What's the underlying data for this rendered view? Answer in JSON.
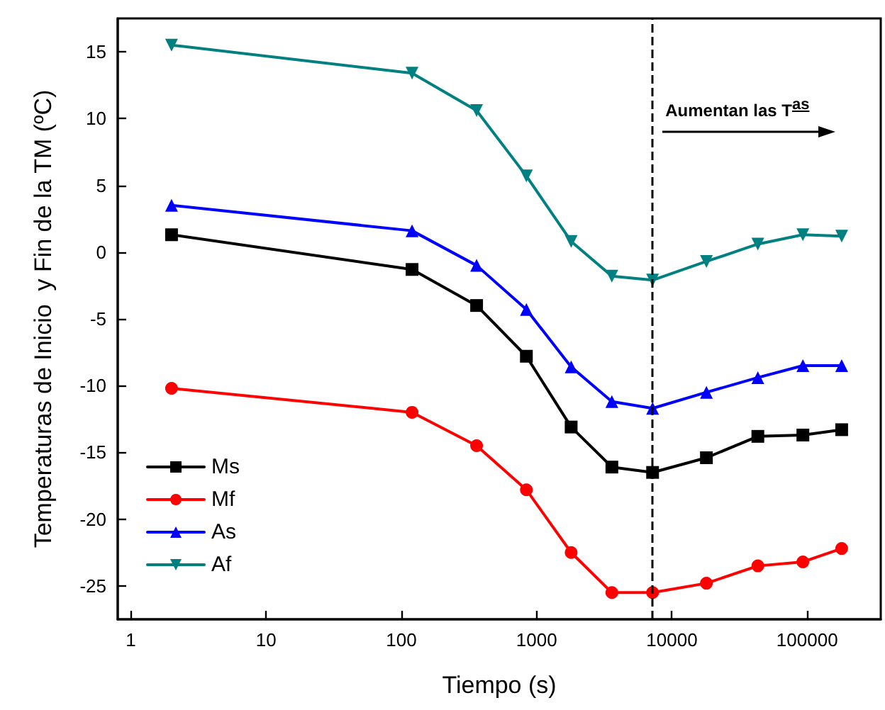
{
  "chart_data": {
    "type": "line",
    "xlabel": "Tiempo (s)",
    "ylabel": "Temperaturas de Inicio  y Fin de la TM (ºC)",
    "x": [
      2,
      120,
      360,
      840,
      1800,
      3600,
      7200,
      18000,
      43200,
      93000,
      180000
    ],
    "series": [
      {
        "name": "Ms",
        "color": "#000000",
        "marker": "square",
        "values": [
          1.3,
          -1.3,
          -4.0,
          -7.8,
          -13.1,
          -16.1,
          -16.5,
          -15.4,
          -13.8,
          -13.7,
          -13.3
        ]
      },
      {
        "name": "Mf",
        "color": "#ff0000",
        "marker": "circle",
        "values": [
          -10.2,
          -12.0,
          -14.5,
          -17.8,
          -22.5,
          -25.5,
          -25.5,
          -24.8,
          -23.5,
          -23.2,
          -22.2
        ]
      },
      {
        "name": "As",
        "color": "#0000ff",
        "marker": "triangle",
        "values": [
          3.5,
          1.6,
          -1.0,
          -4.3,
          -8.6,
          -11.2,
          -11.7,
          -10.5,
          -9.4,
          -8.5,
          -8.5
        ]
      },
      {
        "name": "Af",
        "color": "#008080",
        "marker": "triangle-down",
        "values": [
          15.5,
          13.4,
          10.6,
          5.7,
          0.8,
          -1.8,
          -2.1,
          -0.7,
          0.6,
          1.3,
          1.2
        ]
      }
    ],
    "log": "x",
    "xlim": [
      0.8,
      350000
    ],
    "xticks": [
      1,
      10,
      100,
      1000,
      10000,
      100000
    ],
    "ylim": [
      -27.5,
      17.5
    ],
    "yticks": [
      -25,
      -20,
      -15,
      -10,
      -5,
      0,
      5,
      10,
      15
    ],
    "ref_lines": [
      {
        "axis": "x",
        "value": 7200,
        "color": "#000000",
        "line_style": "dashed"
      }
    ],
    "annotations": [
      "Aumentan las T$^{as}$"
    ],
    "legend": "bottom left",
    "grid": false,
    "line_style": "solid"
  }
}
